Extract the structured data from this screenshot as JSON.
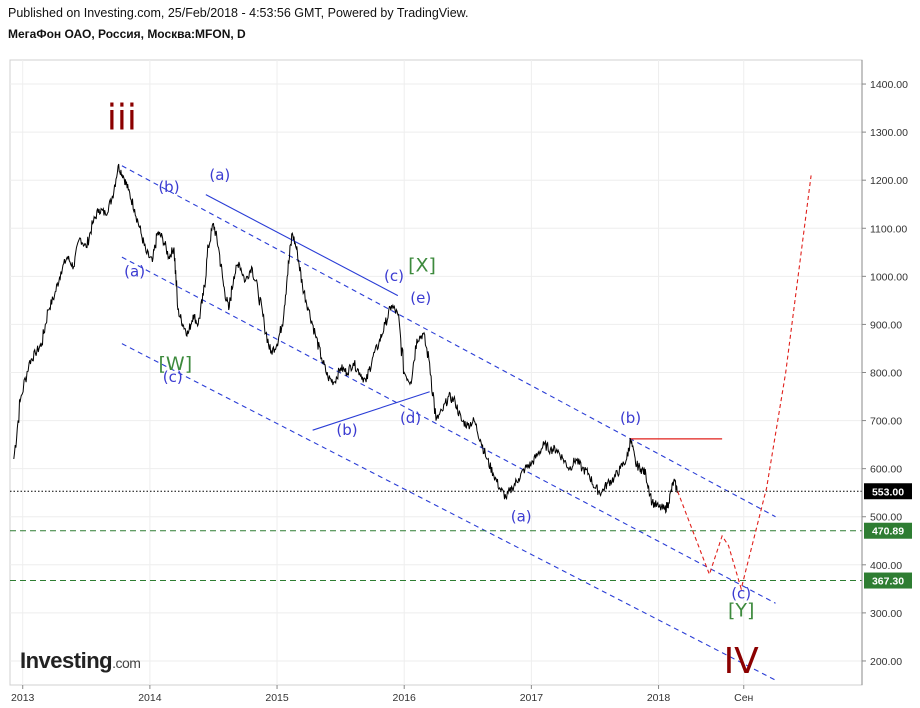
{
  "header": {
    "published": "Published on Investing.com, 25/Feb/2018 - 4:53:56 GMT, Powered by TradingView.",
    "symbol": "МегаФон ОАО, Россия, Москва:MFON, D"
  },
  "logo": {
    "brand": "Investing",
    "suffix": ".com"
  },
  "colors": {
    "price": "#000000",
    "channel": "#2a3dd6",
    "projection": "#e0201b",
    "support": "#2e7d32",
    "wave_major": "#8b0000",
    "wave_minor": "#3b3bd1",
    "wave_mid": "#3d8a3d"
  },
  "chart_data": {
    "type": "line",
    "title": "",
    "xlabel": "",
    "ylabel": "",
    "ylim": [
      150,
      1450
    ],
    "xlim": [
      2012.9,
      2019.6
    ],
    "x_ticks": [
      {
        "x": 2013.0,
        "label": "2013"
      },
      {
        "x": 2014.0,
        "label": "2014"
      },
      {
        "x": 2015.0,
        "label": "2015"
      },
      {
        "x": 2016.0,
        "label": "2016"
      },
      {
        "x": 2017.0,
        "label": "2017"
      },
      {
        "x": 2018.0,
        "label": "2018"
      },
      {
        "x": 2018.67,
        "label": "Сен"
      }
    ],
    "y_ticks": [
      {
        "y": 200,
        "label": "200.00"
      },
      {
        "y": 300,
        "label": "300.00"
      },
      {
        "y": 400,
        "label": "400.00"
      },
      {
        "y": 500,
        "label": "500.00"
      },
      {
        "y": 600,
        "label": "600.00"
      },
      {
        "y": 700,
        "label": "700.00"
      },
      {
        "y": 800,
        "label": "800.00"
      },
      {
        "y": 900,
        "label": "900.00"
      },
      {
        "y": 1000,
        "label": "1000.00"
      },
      {
        "y": 1100,
        "label": "1100.00"
      },
      {
        "y": 1200,
        "label": "1200.00"
      },
      {
        "y": 1300,
        "label": "1300.00"
      },
      {
        "y": 1400,
        "label": "1400.00"
      }
    ],
    "series": [
      {
        "values": [
          [
            2012.93,
            620
          ],
          [
            2012.98,
            740
          ],
          [
            2013.05,
            820
          ],
          [
            2013.1,
            840
          ],
          [
            2013.15,
            860
          ],
          [
            2013.2,
            930
          ],
          [
            2013.25,
            960
          ],
          [
            2013.3,
            1010
          ],
          [
            2013.35,
            1040
          ],
          [
            2013.4,
            1020
          ],
          [
            2013.45,
            1080
          ],
          [
            2013.5,
            1060
          ],
          [
            2013.55,
            1110
          ],
          [
            2013.6,
            1140
          ],
          [
            2013.65,
            1130
          ],
          [
            2013.7,
            1160
          ],
          [
            2013.75,
            1230
          ],
          [
            2013.79,
            1210
          ],
          [
            2013.83,
            1180
          ],
          [
            2013.88,
            1140
          ],
          [
            2013.93,
            1090
          ],
          [
            2013.97,
            1050
          ],
          [
            2014.02,
            1030
          ],
          [
            2014.06,
            1090
          ],
          [
            2014.1,
            1080
          ],
          [
            2014.15,
            1040
          ],
          [
            2014.19,
            1060
          ],
          [
            2014.22,
            930
          ],
          [
            2014.26,
            900
          ],
          [
            2014.3,
            880
          ],
          [
            2014.34,
            920
          ],
          [
            2014.38,
            900
          ],
          [
            2014.42,
            960
          ],
          [
            2014.46,
            1060
          ],
          [
            2014.5,
            1110
          ],
          [
            2014.54,
            1060
          ],
          [
            2014.58,
            980
          ],
          [
            2014.62,
            930
          ],
          [
            2014.66,
            1000
          ],
          [
            2014.7,
            1030
          ],
          [
            2014.75,
            990
          ],
          [
            2014.8,
            1020
          ],
          [
            2014.85,
            970
          ],
          [
            2014.9,
            900
          ],
          [
            2014.95,
            840
          ],
          [
            2015.0,
            860
          ],
          [
            2015.04,
            900
          ],
          [
            2015.08,
            1000
          ],
          [
            2015.12,
            1090
          ],
          [
            2015.16,
            1050
          ],
          [
            2015.2,
            980
          ],
          [
            2015.25,
            930
          ],
          [
            2015.3,
            880
          ],
          [
            2015.35,
            830
          ],
          [
            2015.4,
            790
          ],
          [
            2015.45,
            780
          ],
          [
            2015.5,
            810
          ],
          [
            2015.55,
            800
          ],
          [
            2015.6,
            820
          ],
          [
            2015.65,
            800
          ],
          [
            2015.7,
            780
          ],
          [
            2015.75,
            830
          ],
          [
            2015.8,
            860
          ],
          [
            2015.85,
            900
          ],
          [
            2015.9,
            940
          ],
          [
            2015.95,
            920
          ],
          [
            2016.0,
            800
          ],
          [
            2016.05,
            780
          ],
          [
            2016.1,
            870
          ],
          [
            2016.15,
            880
          ],
          [
            2016.2,
            820
          ],
          [
            2016.25,
            700
          ],
          [
            2016.3,
            720
          ],
          [
            2016.35,
            750
          ],
          [
            2016.4,
            740
          ],
          [
            2016.45,
            700
          ],
          [
            2016.5,
            690
          ],
          [
            2016.55,
            700
          ],
          [
            2016.6,
            660
          ],
          [
            2016.65,
            620
          ],
          [
            2016.7,
            590
          ],
          [
            2016.75,
            560
          ],
          [
            2016.8,
            540
          ],
          [
            2016.85,
            560
          ],
          [
            2016.9,
            580
          ],
          [
            2016.95,
            600
          ],
          [
            2017.0,
            610
          ],
          [
            2017.05,
            630
          ],
          [
            2017.1,
            650
          ],
          [
            2017.15,
            640
          ],
          [
            2017.2,
            640
          ],
          [
            2017.25,
            620
          ],
          [
            2017.3,
            600
          ],
          [
            2017.35,
            620
          ],
          [
            2017.4,
            600
          ],
          [
            2017.45,
            590
          ],
          [
            2017.5,
            560
          ],
          [
            2017.55,
            550
          ],
          [
            2017.6,
            570
          ],
          [
            2017.65,
            580
          ],
          [
            2017.7,
            600
          ],
          [
            2017.75,
            620
          ],
          [
            2017.78,
            660
          ],
          [
            2017.82,
            610
          ],
          [
            2017.86,
            600
          ],
          [
            2017.9,
            590
          ],
          [
            2017.95,
            530
          ],
          [
            2018.0,
            520
          ],
          [
            2018.05,
            515
          ],
          [
            2018.08,
            530
          ],
          [
            2018.12,
            575
          ],
          [
            2018.15,
            553
          ]
        ]
      }
    ],
    "projection": [
      [
        2018.15,
        553
      ],
      [
        2018.4,
        380
      ],
      [
        2018.5,
        460
      ],
      [
        2018.55,
        440
      ],
      [
        2018.65,
        350
      ],
      [
        2018.85,
        560
      ],
      [
        2019.0,
        800
      ],
      [
        2019.2,
        1210
      ]
    ],
    "channels": [
      {
        "from": [
          2013.78,
          1230
        ],
        "to": [
          2018.92,
          500
        ],
        "style": "dashed"
      },
      {
        "from": [
          2013.78,
          1040
        ],
        "to": [
          2018.92,
          320
        ],
        "style": "dashed"
      },
      {
        "from": [
          2013.78,
          860
        ],
        "to": [
          2018.92,
          160
        ],
        "style": "dashed"
      },
      {
        "from": [
          2014.44,
          1170
        ],
        "to": [
          2015.95,
          960
        ],
        "style": "solid"
      },
      {
        "from": [
          2015.28,
          680
        ],
        "to": [
          2016.2,
          760
        ],
        "style": "solid"
      }
    ],
    "resistance": {
      "from": [
        2017.78,
        662
      ],
      "to": [
        2018.5,
        662
      ]
    },
    "horizontal_levels": [
      {
        "value": 553.0,
        "label": "553.00",
        "style": "dotted",
        "color": "#000000"
      },
      {
        "value": 470.89,
        "label": "470.89",
        "style": "dashed",
        "color": "#2e7d32"
      },
      {
        "value": 367.3,
        "label": "367.30",
        "style": "dashed",
        "color": "#2e7d32"
      }
    ],
    "annotations": [
      {
        "x": 2013.78,
        "y": 1305,
        "text": "iii",
        "class": "major"
      },
      {
        "x": 2018.65,
        "y": 175,
        "text": "IV",
        "class": "major"
      },
      {
        "x": 2014.2,
        "y": 805,
        "text": "[W]",
        "class": "mid"
      },
      {
        "x": 2016.14,
        "y": 1010,
        "text": "[X]",
        "class": "mid"
      },
      {
        "x": 2018.65,
        "y": 292,
        "text": "[Y]",
        "class": "mid"
      },
      {
        "x": 2013.88,
        "y": 1000,
        "text": "(a)",
        "class": "minor"
      },
      {
        "x": 2014.15,
        "y": 1175,
        "text": "(b)",
        "class": "minor"
      },
      {
        "x": 2014.18,
        "y": 780,
        "text": "(c)",
        "class": "minor"
      },
      {
        "x": 2014.55,
        "y": 1200,
        "text": "(a)",
        "class": "minor"
      },
      {
        "x": 2015.55,
        "y": 670,
        "text": "(b)",
        "class": "minor"
      },
      {
        "x": 2015.92,
        "y": 990,
        "text": "(c)",
        "class": "minor"
      },
      {
        "x": 2016.05,
        "y": 695,
        "text": "(d)",
        "class": "minor"
      },
      {
        "x": 2016.13,
        "y": 945,
        "text": "(e)",
        "class": "minor"
      },
      {
        "x": 2016.92,
        "y": 490,
        "text": "(a)",
        "class": "minor"
      },
      {
        "x": 2017.78,
        "y": 695,
        "text": "(b)",
        "class": "minor"
      },
      {
        "x": 2018.65,
        "y": 330,
        "text": "(c)",
        "class": "minor"
      }
    ]
  }
}
